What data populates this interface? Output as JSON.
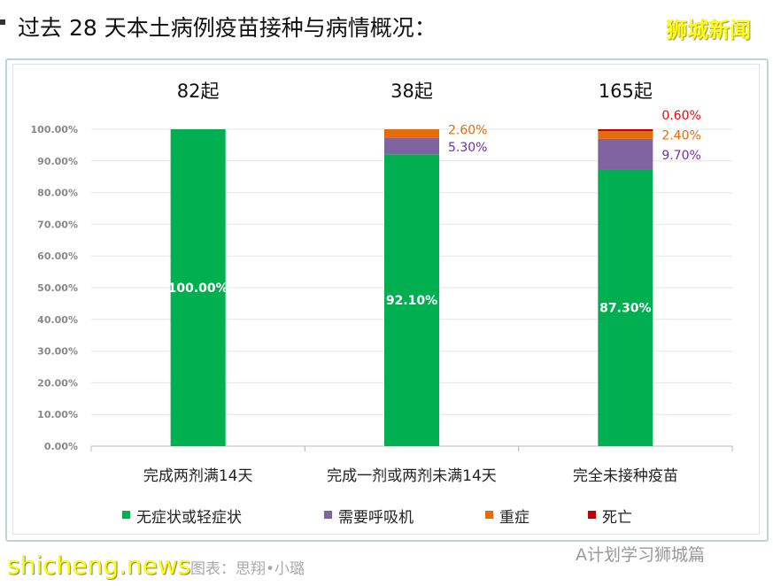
{
  "title": "过去 28 天本土病例疫苗接种与病情概况：",
  "brand": "狮城新闻",
  "footer": {
    "credit": "图表：思翔•小璐",
    "site": "shicheng.news",
    "wechat": "A计划学习狮城篇"
  },
  "chart_data": {
    "type": "bar",
    "stacked": true,
    "categories": [
      "完成两剂满14天",
      "完成一剂或两剂未满14天",
      "完全未接种疫苗"
    ],
    "totals": [
      "82起",
      "38起",
      "165起"
    ],
    "series": [
      {
        "name": "无症状或轻症状",
        "color": "#00b050",
        "values": [
          100.0,
          92.1,
          87.3
        ],
        "labels": [
          "100.00%",
          "92.10%",
          "87.30%"
        ]
      },
      {
        "name": "需要呼吸机",
        "color": "#8064a2",
        "values": [
          0,
          5.3,
          9.7
        ],
        "labels": [
          "",
          "5.30%",
          "9.70%"
        ]
      },
      {
        "name": "重症",
        "color": "#e46c0a",
        "values": [
          0,
          2.6,
          2.4
        ],
        "labels": [
          "",
          "2.60%",
          "2.40%"
        ]
      },
      {
        "name": "死亡",
        "color": "#c00000",
        "values": [
          0,
          0,
          0.6
        ],
        "labels": [
          "",
          "",
          "0.60%"
        ]
      }
    ],
    "label_colors": [
      "#ffffff",
      "#7030a0",
      "#e46c0a",
      "#ff0000"
    ],
    "yticks": [
      "0.00%",
      "10.00%",
      "20.00%",
      "30.00%",
      "40.00%",
      "50.00%",
      "60.00%",
      "70.00%",
      "80.00%",
      "90.00%",
      "100.00%"
    ],
    "ylim": [
      0,
      100
    ],
    "grid": true,
    "legend": "bottom"
  }
}
